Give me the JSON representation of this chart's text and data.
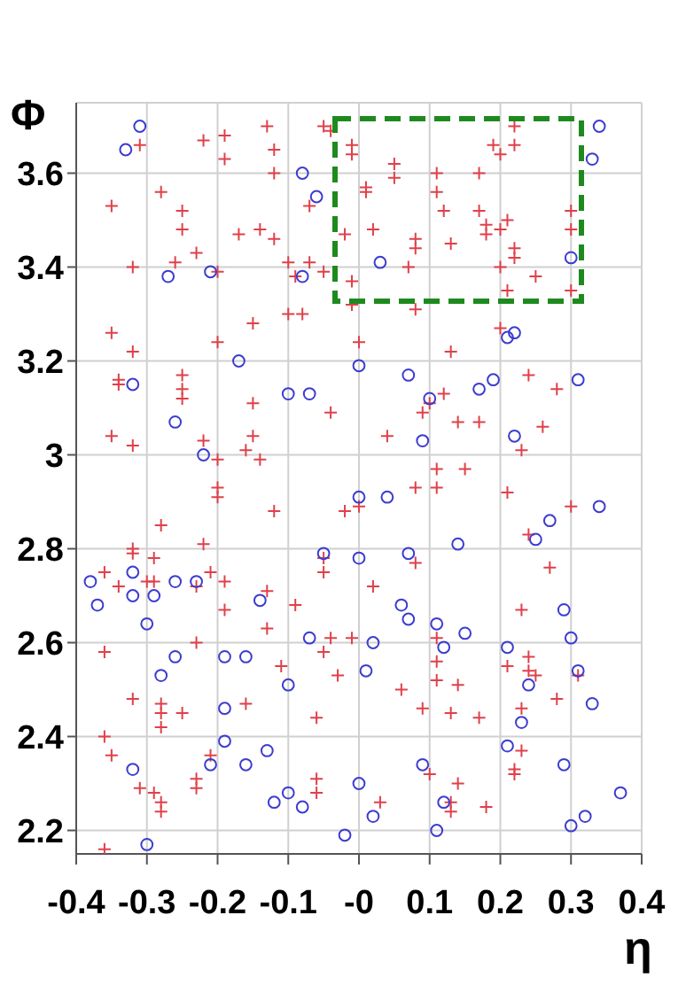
{
  "chart_data": {
    "type": "scatter",
    "xlabel": "η",
    "ylabel": "Φ",
    "xlim": [
      -0.4,
      0.4
    ],
    "xticks": [
      -0.4,
      -0.3,
      -0.2,
      -0.1,
      {
        "value": 0,
        "label": "-0"
      },
      0.1,
      0.2,
      0.3,
      0.4
    ],
    "ylim": [
      2.15,
      3.75
    ],
    "yticks": [
      2.2,
      2.4,
      2.6,
      2.8,
      3,
      3.2,
      3.4,
      3.6
    ],
    "grid": true,
    "series": [
      {
        "marker": "cross",
        "color": "#e0404a",
        "x": [
          -0.31,
          -0.22,
          -0.19,
          -0.19,
          -0.13,
          -0.12,
          -0.12,
          -0.04,
          -0.05,
          -0.28,
          -0.35,
          -0.25,
          -0.25,
          -0.17,
          -0.14,
          -0.12,
          -0.07,
          -0.32,
          -0.26,
          -0.23,
          -0.2,
          -0.1,
          -0.07,
          -0.05,
          -0.09,
          -0.02,
          -0.1,
          -0.08,
          -0.15,
          -0.35,
          -0.2,
          -0.32,
          -0.01,
          -0.01,
          0.05,
          0.05,
          0.01,
          0.01,
          0.02,
          0.11,
          0.11,
          0.12,
          0.17,
          0.19,
          0.22,
          0.2,
          0.22,
          0.08,
          0.08,
          0.13,
          0.17,
          0.18,
          0.18,
          0.21,
          0.2,
          0.22,
          0.22,
          0.2,
          0.25,
          0.3,
          0.3,
          0.07,
          -0.01,
          0.21,
          0.3,
          0.08,
          0,
          0.13,
          0.2,
          -0.01,
          -0.34,
          -0.34,
          -0.25,
          -0.25,
          -0.25,
          -0.15,
          -0.04,
          -0.35,
          -0.32,
          -0.22,
          -0.15,
          -0.16,
          -0.14,
          -0.2,
          -0.2,
          -0.2,
          -0.12,
          -0.28,
          -0.22,
          -0.32,
          -0.32,
          -0.29,
          -0.05,
          -0.05,
          -0.36,
          -0.21,
          -0.29,
          -0.3,
          -0.23,
          -0.34,
          -0.19,
          -0.13,
          -0.09,
          -0.02,
          0.12,
          0.09,
          0.1,
          0.14,
          0.17,
          0.04,
          0.24,
          0.28,
          0.26,
          0.23,
          0.11,
          0.15,
          0.11,
          0.08,
          0,
          0.21,
          0.3,
          0.24,
          0.08,
          0.27,
          0.02,
          0.23,
          -0.36,
          -0.23,
          -0.19,
          -0.13,
          -0.04,
          -0.05,
          -0.03,
          -0.11,
          -0.32,
          -0.28,
          -0.28,
          -0.28,
          -0.25,
          -0.16,
          -0.06,
          -0.36,
          -0.35,
          -0.21,
          -0.23,
          -0.23,
          -0.06,
          -0.06,
          -0.31,
          -0.29,
          -0.28,
          -0.28,
          -0.36,
          -0.01,
          0.11,
          0.11,
          0.11,
          0.14,
          0.06,
          0.09,
          0.13,
          0.17,
          0.21,
          0.24,
          0.24,
          0.25,
          0.28,
          0.31,
          0.23,
          0.23,
          0.22,
          0.22,
          0.1,
          0.14,
          0.13,
          0.13,
          0.18,
          0.03
        ],
        "values": [
          3.66,
          3.67,
          3.68,
          3.63,
          3.7,
          3.65,
          3.6,
          3.69,
          3.7,
          3.56,
          3.53,
          3.52,
          3.48,
          3.47,
          3.48,
          3.46,
          3.53,
          3.4,
          3.41,
          3.43,
          3.39,
          3.41,
          3.41,
          3.39,
          3.38,
          3.47,
          3.3,
          3.3,
          3.28,
          3.26,
          3.24,
          3.22,
          3.66,
          3.64,
          3.62,
          3.59,
          3.57,
          3.56,
          3.48,
          3.6,
          3.56,
          3.52,
          3.6,
          3.66,
          3.66,
          3.64,
          3.7,
          3.46,
          3.44,
          3.45,
          3.52,
          3.49,
          3.47,
          3.5,
          3.48,
          3.44,
          3.42,
          3.4,
          3.38,
          3.52,
          3.48,
          3.4,
          3.37,
          3.35,
          3.35,
          3.31,
          3.24,
          3.22,
          3.27,
          3.32,
          3.16,
          3.15,
          3.17,
          3.14,
          3.12,
          3.11,
          3.09,
          3.04,
          3.02,
          3.03,
          3.04,
          3.01,
          2.99,
          2.99,
          2.93,
          2.91,
          2.88,
          2.85,
          2.81,
          2.8,
          2.79,
          2.78,
          2.78,
          2.75,
          2.75,
          2.75,
          2.73,
          2.73,
          2.72,
          2.72,
          2.73,
          2.71,
          2.68,
          2.88,
          3.13,
          3.09,
          3.11,
          3.07,
          3.07,
          3.04,
          3.17,
          3.14,
          3.06,
          3.01,
          2.97,
          2.97,
          2.93,
          2.93,
          2.89,
          2.92,
          2.89,
          2.83,
          2.77,
          2.76,
          2.72,
          2.67,
          2.58,
          2.6,
          2.67,
          2.63,
          2.61,
          2.58,
          2.53,
          2.55,
          2.48,
          2.47,
          2.45,
          2.42,
          2.45,
          2.47,
          2.44,
          2.4,
          2.36,
          2.36,
          2.31,
          2.29,
          2.31,
          2.28,
          2.29,
          2.28,
          2.26,
          2.24,
          2.16,
          2.61,
          2.61,
          2.56,
          2.52,
          2.51,
          2.5,
          2.46,
          2.45,
          2.44,
          2.55,
          2.57,
          2.54,
          2.53,
          2.48,
          2.53,
          2.46,
          2.37,
          2.33,
          2.32,
          2.32,
          2.3,
          2.26,
          2.24,
          2.25,
          2.26
        ]
      },
      {
        "marker": "circle",
        "color": "#3c3cd0",
        "x": [
          -0.31,
          -0.33,
          -0.08,
          -0.06,
          -0.27,
          -0.21,
          -0.08,
          0.34,
          0.33,
          0.03,
          0.3,
          0.21,
          0.22,
          -0.17,
          -0.32,
          -0.1,
          -0.07,
          -0.26,
          -0.22,
          -0.05,
          -0.38,
          -0.32,
          -0.37,
          -0.32,
          -0.29,
          -0.26,
          -0.23,
          -0.14,
          0,
          0.07,
          0.1,
          0.17,
          0.19,
          0.31,
          0.09,
          0.22,
          0,
          0.04,
          0.34,
          0.27,
          0.25,
          0.14,
          0.07,
          0,
          0.06,
          0.29,
          -0.3,
          -0.26,
          -0.19,
          -0.16,
          -0.28,
          -0.1,
          -0.19,
          -0.07,
          -0.19,
          -0.21,
          -0.16,
          -0.13,
          -0.32,
          -0.1,
          -0.08,
          -0.12,
          -0.3,
          -0.02,
          0.07,
          0.11,
          0.15,
          0.02,
          0.12,
          0.21,
          0.3,
          0.01,
          0.31,
          0.24,
          0.33,
          0.23,
          0.21,
          0.09,
          0.29,
          0.37,
          0,
          0.12,
          0.02,
          0.32,
          0.3,
          0.11
        ],
        "values": [
          3.7,
          3.65,
          3.6,
          3.55,
          3.38,
          3.39,
          3.38,
          3.7,
          3.63,
          3.41,
          3.42,
          3.25,
          3.26,
          3.2,
          3.15,
          3.13,
          3.13,
          3.07,
          3,
          2.79,
          2.73,
          2.75,
          2.68,
          2.7,
          2.7,
          2.73,
          2.73,
          2.69,
          3.19,
          3.17,
          3.12,
          3.14,
          3.16,
          3.16,
          3.03,
          3.04,
          2.91,
          2.91,
          2.89,
          2.86,
          2.82,
          2.81,
          2.79,
          2.78,
          2.68,
          2.67,
          2.64,
          2.57,
          2.57,
          2.57,
          2.53,
          2.51,
          2.46,
          2.61,
          2.39,
          2.34,
          2.34,
          2.37,
          2.33,
          2.28,
          2.25,
          2.26,
          2.17,
          2.19,
          2.65,
          2.64,
          2.62,
          2.6,
          2.59,
          2.59,
          2.61,
          2.54,
          2.54,
          2.51,
          2.47,
          2.43,
          2.38,
          2.34,
          2.34,
          2.28,
          2.3,
          2.26,
          2.23,
          2.23,
          2.21,
          2.2
        ]
      }
    ]
  }
}
